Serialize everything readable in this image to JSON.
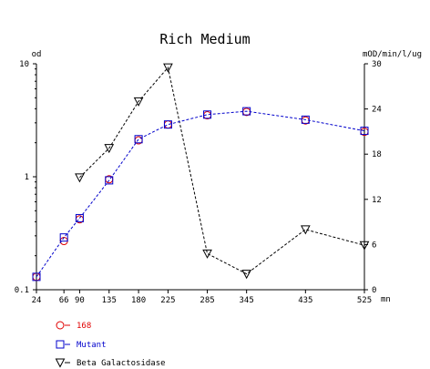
{
  "chart_data": {
    "type": "line",
    "title": "Rich Medium",
    "x_unit": "mn",
    "x_ticks": [
      24,
      66,
      90,
      135,
      180,
      225,
      285,
      345,
      435,
      525
    ],
    "left_axis": {
      "label": "od",
      "scale": "log",
      "range": [
        0.1,
        10
      ],
      "ticks": [
        0.1,
        1,
        10
      ],
      "tick_labels": [
        "0.1",
        "1",
        "10"
      ]
    },
    "right_axis": {
      "label": "mOD/min/l/ug",
      "scale": "linear",
      "range": [
        0,
        30
      ],
      "ticks": [
        0,
        6,
        12,
        18,
        24,
        30
      ],
      "tick_labels": [
        "0",
        "6",
        "12",
        "18",
        "24",
        "30"
      ]
    },
    "series": [
      {
        "name": "168",
        "axis": "left",
        "marker": "circle",
        "color": "#e00000",
        "line": false,
        "x": [
          24,
          66,
          90,
          135,
          180,
          225,
          285,
          345,
          435,
          525
        ],
        "y": [
          0.13,
          0.27,
          0.42,
          0.95,
          2.1,
          2.9,
          3.5,
          3.75,
          3.15,
          2.5
        ]
      },
      {
        "name": "Mutant",
        "axis": "left",
        "marker": "square",
        "color": "#0000cc",
        "line": true,
        "x": [
          24,
          66,
          90,
          135,
          180,
          225,
          285,
          345,
          435,
          525
        ],
        "y": [
          0.13,
          0.29,
          0.43,
          0.93,
          2.15,
          2.9,
          3.55,
          3.8,
          3.2,
          2.55
        ]
      },
      {
        "name": "Beta Galactosidase",
        "axis": "right",
        "marker": "triangle-down",
        "color": "#000000",
        "line": true,
        "x": [
          90,
          135,
          180,
          225,
          285,
          345,
          435,
          525
        ],
        "y": [
          14.9,
          18.8,
          25.0,
          29.5,
          4.8,
          2.1,
          8.0,
          5.9
        ]
      }
    ]
  }
}
